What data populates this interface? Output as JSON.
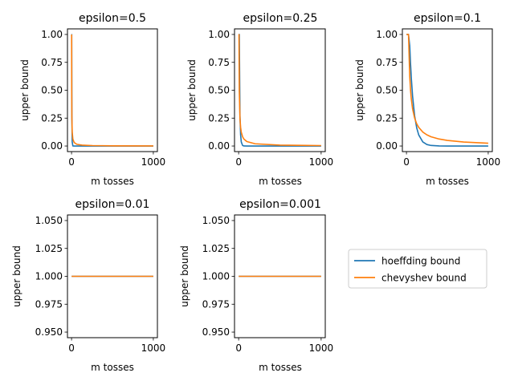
{
  "colors": {
    "hoeffding": "#1f77b4",
    "chebyshev": "#ff7f0e",
    "axis": "#000000",
    "background": "#ffffff"
  },
  "legend": {
    "placement": "right-of-bottom-row",
    "entries": [
      {
        "label": "hoeffding bound",
        "color": "#1f77b4"
      },
      {
        "label": "chevyshev bound",
        "color": "#ff7f0e"
      }
    ]
  },
  "chart_data": [
    {
      "type": "line",
      "title": "epsilon=0.5",
      "xlabel": "m tosses",
      "ylabel": "upper bound",
      "xlim": [
        -50,
        1050
      ],
      "ylim": [
        -0.05,
        1.05
      ],
      "xticks": [
        0,
        1000
      ],
      "yticks": [
        0.0,
        0.25,
        0.5,
        0.75,
        1.0
      ],
      "ytick_labels": [
        "0.00",
        "0.25",
        "0.50",
        "0.75",
        "1.00"
      ],
      "epsilon": 0.5,
      "series": [
        {
          "name": "hoeffding bound",
          "color": "#1f77b4",
          "x": [
            1,
            2,
            4,
            8,
            16,
            32,
            64,
            128,
            256,
            512,
            1000
          ],
          "y": [
            1.0,
            1.0,
            0.271,
            0.0366,
            0.00067,
            0.0,
            0.0,
            0.0,
            0.0,
            0.0,
            0.0
          ]
        },
        {
          "name": "chevyshev bound",
          "color": "#ff7f0e",
          "x": [
            1,
            2,
            4,
            8,
            16,
            32,
            64,
            128,
            256,
            512,
            1000
          ],
          "y": [
            1.0,
            0.5,
            0.25,
            0.125,
            0.0625,
            0.0313,
            0.0156,
            0.0078,
            0.0039,
            0.002,
            0.001
          ]
        }
      ]
    },
    {
      "type": "line",
      "title": "epsilon=0.25",
      "xlabel": "m tosses",
      "ylabel": "upper bound",
      "xlim": [
        -50,
        1050
      ],
      "ylim": [
        -0.05,
        1.05
      ],
      "xticks": [
        0,
        1000
      ],
      "yticks": [
        0.0,
        0.25,
        0.5,
        0.75,
        1.0
      ],
      "ytick_labels": [
        "0.00",
        "0.25",
        "0.50",
        "0.75",
        "1.00"
      ],
      "epsilon": 0.25,
      "series": [
        {
          "name": "hoeffding bound",
          "color": "#1f77b4",
          "x": [
            1,
            4,
            8,
            16,
            24,
            32,
            48,
            64,
            100,
            200,
            500,
            1000
          ],
          "y": [
            1.0,
            1.0,
            1.0,
            0.271,
            0.0996,
            0.0366,
            0.00496,
            0.00067,
            0.0,
            0.0,
            0.0,
            0.0
          ]
        },
        {
          "name": "chevyshev bound",
          "color": "#ff7f0e",
          "x": [
            1,
            4,
            8,
            16,
            24,
            32,
            48,
            64,
            100,
            200,
            500,
            1000
          ],
          "y": [
            1.0,
            1.0,
            0.5,
            0.25,
            0.167,
            0.125,
            0.0833,
            0.0625,
            0.04,
            0.02,
            0.008,
            0.004
          ]
        }
      ]
    },
    {
      "type": "line",
      "title": "epsilon=0.1",
      "xlabel": "m tosses",
      "ylabel": "upper bound",
      "xlim": [
        -50,
        1050
      ],
      "ylim": [
        -0.05,
        1.05
      ],
      "xticks": [
        0,
        1000
      ],
      "yticks": [
        0.0,
        0.25,
        0.5,
        0.75,
        1.0
      ],
      "ytick_labels": [
        "0.00",
        "0.25",
        "0.50",
        "0.75",
        "1.00"
      ],
      "epsilon": 0.1,
      "series": [
        {
          "name": "hoeffding bound",
          "color": "#1f77b4",
          "x": [
            1,
            25,
            40,
            50,
            60,
            75,
            100,
            125,
            150,
            200,
            250,
            300,
            400,
            500,
            700,
            1000
          ],
          "y": [
            1.0,
            1.0,
            0.899,
            0.736,
            0.602,
            0.446,
            0.271,
            0.164,
            0.0996,
            0.0366,
            0.0135,
            0.00496,
            0.00067,
            0.0001,
            0.0,
            0.0
          ]
        },
        {
          "name": "chevyshev bound",
          "color": "#ff7f0e",
          "x": [
            1,
            25,
            40,
            50,
            60,
            75,
            100,
            125,
            150,
            200,
            250,
            300,
            400,
            500,
            700,
            1000
          ],
          "y": [
            1.0,
            1.0,
            0.625,
            0.5,
            0.417,
            0.333,
            0.25,
            0.2,
            0.167,
            0.125,
            0.1,
            0.0833,
            0.0625,
            0.05,
            0.0357,
            0.025
          ]
        }
      ]
    },
    {
      "type": "line",
      "title": "epsilon=0.01",
      "xlabel": "m tosses",
      "ylabel": "upper bound",
      "xlim": [
        -50,
        1050
      ],
      "ylim": [
        0.945,
        1.055
      ],
      "xticks": [
        0,
        1000
      ],
      "yticks": [
        0.95,
        0.975,
        1.0,
        1.025,
        1.05
      ],
      "ytick_labels": [
        "0.950",
        "0.975",
        "1.000",
        "1.025",
        "1.050"
      ],
      "epsilon": 0.01,
      "series": [
        {
          "name": "hoeffding bound",
          "color": "#1f77b4",
          "x": [
            1,
            1000
          ],
          "y": [
            1.0,
            1.0
          ]
        },
        {
          "name": "chevyshev bound",
          "color": "#ff7f0e",
          "x": [
            1,
            1000
          ],
          "y": [
            1.0,
            1.0
          ]
        }
      ]
    },
    {
      "type": "line",
      "title": "epsilon=0.001",
      "xlabel": "m tosses",
      "ylabel": "upper bound",
      "xlim": [
        -50,
        1050
      ],
      "ylim": [
        0.945,
        1.055
      ],
      "xticks": [
        0,
        1000
      ],
      "yticks": [
        0.95,
        0.975,
        1.0,
        1.025,
        1.05
      ],
      "ytick_labels": [
        "0.950",
        "0.975",
        "1.000",
        "1.025",
        "1.050"
      ],
      "epsilon": 0.001,
      "series": [
        {
          "name": "hoeffding bound",
          "color": "#1f77b4",
          "x": [
            1,
            1000
          ],
          "y": [
            1.0,
            1.0
          ]
        },
        {
          "name": "chevyshev bound",
          "color": "#ff7f0e",
          "x": [
            1,
            1000
          ],
          "y": [
            1.0,
            1.0
          ]
        }
      ]
    }
  ]
}
